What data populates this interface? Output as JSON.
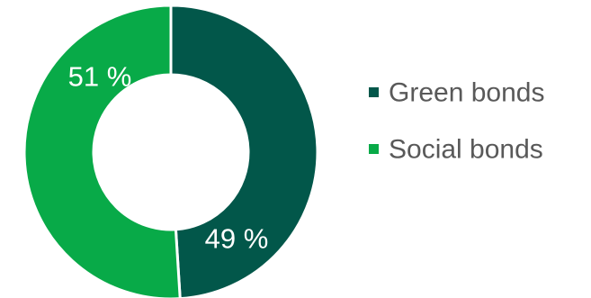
{
  "chart_data": {
    "type": "pie",
    "variant": "donut",
    "categories": [
      "Green bonds",
      "Social bonds"
    ],
    "values": [
      49,
      51
    ],
    "data_labels": [
      "49 %",
      "51 %"
    ],
    "colors": [
      "#02574A",
      "#08AA48"
    ],
    "legend": {
      "position": "right",
      "entries": [
        "Green bonds",
        "Social bonds"
      ]
    }
  }
}
